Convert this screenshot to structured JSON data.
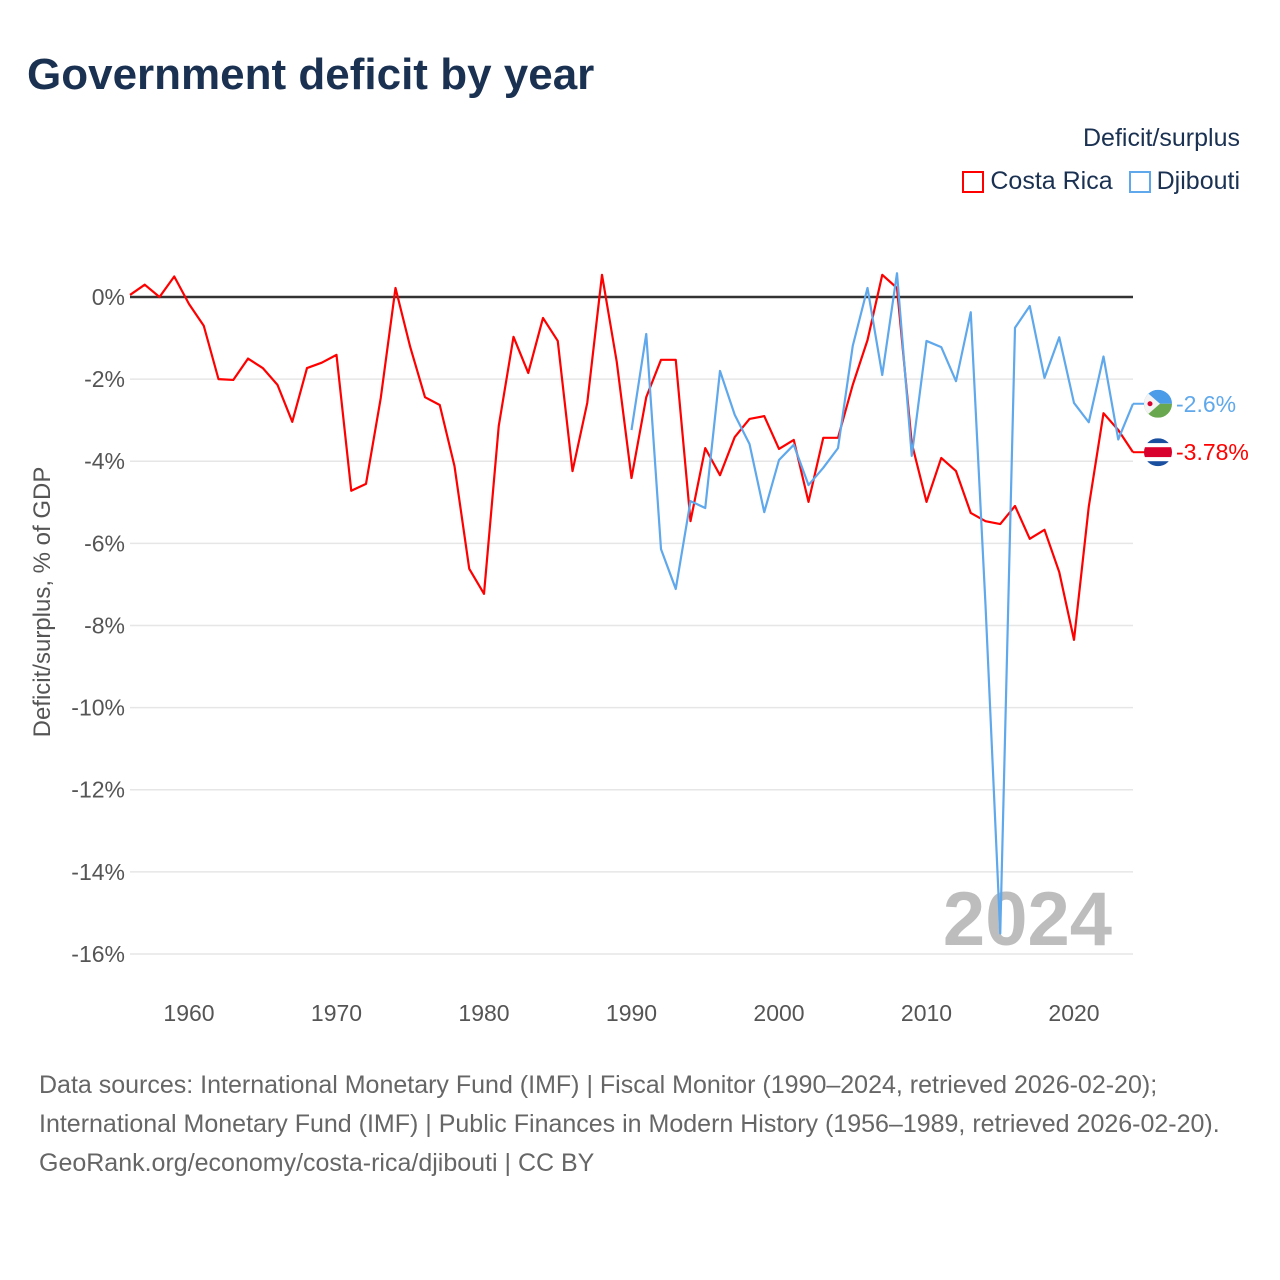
{
  "title": "Government deficit by year",
  "legend": {
    "title": "Deficit/surplus",
    "items": [
      {
        "label": "Costa Rica",
        "color": "#ff0000"
      },
      {
        "label": "Djibouti",
        "color": "#5fa8ec"
      }
    ]
  },
  "year_watermark": "2024",
  "footer": {
    "sources": "Data sources: International Monetary Fund (IMF) | Fiscal Monitor (1990–2024, retrieved 2026-02-20); International Monetary Fund (IMF) | Public Finances in Modern History (1956–1989, retrieved 2026-02-20).",
    "credit": "GeoRank.org/economy/costa-rica/djibouti | CC BY"
  },
  "chart_data": {
    "type": "line",
    "title": "Government deficit by year",
    "xlabel": "",
    "ylabel": "Deficit/surplus, % of GDP",
    "xlim": [
      1956,
      2024
    ],
    "ylim": [
      -16.5,
      1
    ],
    "xticks": [
      1960,
      1970,
      1980,
      1990,
      2000,
      2010,
      2020
    ],
    "xtick_labels": [
      "1960",
      "1970",
      "1980",
      "1990",
      "2000",
      "2010",
      "2020"
    ],
    "yticks": [
      0,
      -2,
      -4,
      -6,
      -8,
      -10,
      -12,
      -14,
      -16
    ],
    "ytick_labels": [
      "0%",
      "-2%",
      "-4%",
      "-6%",
      "-8%",
      "-10%",
      "-12%",
      "-14%",
      "-16%"
    ],
    "grid": true,
    "legend_position": "top-right",
    "series": [
      {
        "name": "Costa Rica",
        "color": "#ff0000",
        "end_label": "-3.78%",
        "x": [
          1956,
          1957,
          1958,
          1959,
          1960,
          1961,
          1962,
          1963,
          1964,
          1965,
          1966,
          1967,
          1968,
          1969,
          1970,
          1971,
          1972,
          1973,
          1974,
          1975,
          1976,
          1977,
          1978,
          1979,
          1980,
          1981,
          1982,
          1983,
          1984,
          1985,
          1986,
          1987,
          1988,
          1989,
          1990,
          1991,
          1992,
          1993,
          1994,
          1995,
          1996,
          1997,
          1998,
          1999,
          2000,
          2001,
          2002,
          2003,
          2004,
          2005,
          2006,
          2007,
          2008,
          2009,
          2010,
          2011,
          2012,
          2013,
          2014,
          2015,
          2016,
          2017,
          2018,
          2019,
          2020,
          2021,
          2022,
          2023,
          2024
        ],
        "y": [
          0.05,
          0.3,
          0.0,
          0.5,
          -0.17,
          -0.7,
          -2.0,
          -2.02,
          -1.5,
          -1.73,
          -2.14,
          -3.04,
          -1.73,
          -1.6,
          -1.41,
          -4.72,
          -4.55,
          -2.46,
          0.22,
          -1.22,
          -2.44,
          -2.63,
          -4.12,
          -6.62,
          -7.23,
          -3.14,
          -0.97,
          -1.85,
          -0.51,
          -1.07,
          -4.24,
          -2.58,
          0.54,
          -1.58,
          -4.41,
          -2.44,
          -1.53,
          -1.53,
          -5.46,
          -3.68,
          -4.34,
          -3.41,
          -2.97,
          -2.9,
          -3.7,
          -3.48,
          -4.99,
          -3.43,
          -3.43,
          -2.14,
          -1.05,
          0.54,
          0.22,
          -3.56,
          -4.99,
          -3.92,
          -4.24,
          -5.26,
          -5.46,
          -5.53,
          -5.09,
          -5.89,
          -5.67,
          -6.7,
          -8.35,
          -5.11,
          -2.83,
          -3.24,
          -3.78
        ]
      },
      {
        "name": "Djibouti",
        "color": "#5fa8ec",
        "end_label": "-2.6%",
        "x": [
          1990,
          1991,
          1992,
          1993,
          1994,
          1995,
          1996,
          1997,
          1998,
          1999,
          2000,
          2001,
          2002,
          2003,
          2004,
          2005,
          2006,
          2007,
          2008,
          2009,
          2010,
          2011,
          2012,
          2013,
          2014,
          2015,
          2016,
          2017,
          2018,
          2019,
          2020,
          2021,
          2022,
          2023,
          2024
        ],
        "y": [
          -3.24,
          -0.9,
          -6.14,
          -7.11,
          -4.97,
          -5.14,
          -1.8,
          -2.87,
          -3.58,
          -5.24,
          -3.97,
          -3.6,
          -4.58,
          -4.16,
          -3.68,
          -1.19,
          0.22,
          -1.9,
          0.58,
          -3.87,
          -1.07,
          -1.22,
          -2.05,
          -0.37,
          -7.5,
          -15.5,
          -0.75,
          -0.22,
          -1.97,
          -0.98,
          -2.58,
          -3.05,
          -1.45,
          -3.47,
          -2.6
        ]
      }
    ]
  }
}
